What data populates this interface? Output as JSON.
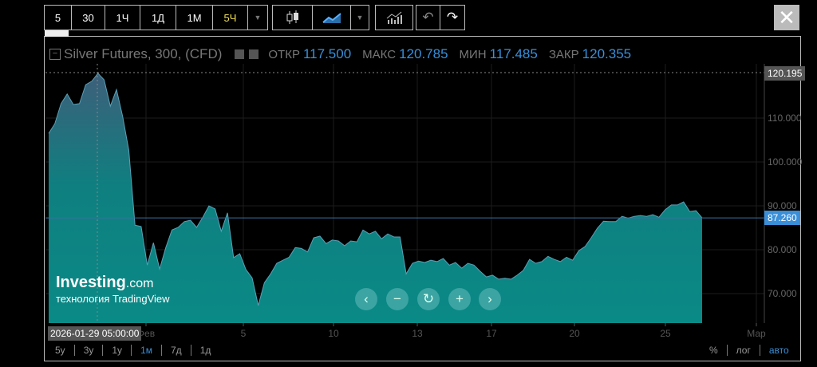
{
  "toolbar": {
    "intervals": [
      "5",
      "30",
      "1Ч",
      "1Д",
      "1М",
      "5Ч"
    ],
    "active_interval": "5Ч",
    "icons": [
      "chevron-down-icon",
      "candlestick-icon",
      "line-chart-icon",
      "chevron-down-icon",
      "indicators-icon",
      "undo-icon",
      "redo-icon"
    ],
    "close": "✕"
  },
  "legend": {
    "title": "Silver Futures, 300, (CFD)",
    "open_label": "ОТКР",
    "open": "117.500",
    "high_label": "МАКС",
    "high": "120.785",
    "low_label": "МИН",
    "low": "117.485",
    "close_label": "ЗАКР",
    "close": "120.355"
  },
  "crosshair": {
    "date": "2026-01-29 05:00:00",
    "price": "120.195"
  },
  "last_price": "87.260",
  "watermark": {
    "brand": "Investing",
    "brand_suffix": ".com",
    "sub": "технология TradingView"
  },
  "zoom_buttons": [
    "‹",
    "−",
    "↻",
    "+",
    "›"
  ],
  "ranges": [
    "5y",
    "3y",
    "1y",
    "1м",
    "7д",
    "1д"
  ],
  "active_range": "1м",
  "scale_options": [
    "%",
    "лог",
    "авто"
  ],
  "active_scale": "авто",
  "colors": {
    "fill_top": "#3d5f7a",
    "fill_bottom": "#0a8a86",
    "line": "#5aa0b5",
    "accent": "#3a8fd9"
  },
  "chart_data": {
    "type": "area",
    "title": "Silver Futures, 300, (CFD)",
    "ylim": [
      63,
      122
    ],
    "y_ticks": [
      "120.195",
      "110.000",
      "100.000",
      "90.000",
      "80.000",
      "70.000"
    ],
    "x_ticks": [
      "Фев",
      "5",
      "10",
      "13",
      "17",
      "20",
      "25",
      "Мар"
    ],
    "values": [
      106.5,
      108.7,
      113.3,
      115.5,
      113.1,
      113.3,
      117.6,
      118.4,
      120.2,
      118.7,
      112.7,
      116.5,
      110.4,
      102.7,
      85.6,
      85.3,
      76.5,
      81.6,
      75.6,
      80.5,
      84.5,
      85.1,
      86.4,
      86.7,
      85.1,
      87.4,
      90.0,
      89.3,
      84.2,
      88.4,
      78.2,
      79.1,
      75.5,
      73.6,
      67.3,
      72.5,
      74.5,
      76.9,
      77.6,
      78.3,
      80.5,
      80.3,
      79.5,
      82.7,
      83.1,
      81.4,
      82.2,
      82.0,
      80.9,
      82.0,
      81.8,
      84.5,
      83.6,
      84.2,
      82.5,
      83.6,
      82.9,
      82.9,
      74.5,
      76.9,
      77.4,
      77.1,
      77.6,
      77.3,
      78.0,
      76.5,
      77.1,
      75.8,
      76.9,
      76.5,
      75.1,
      73.8,
      74.2,
      73.3,
      73.5,
      73.3,
      74.2,
      75.3,
      77.8,
      76.9,
      77.3,
      78.5,
      77.8,
      77.3,
      78.3,
      77.6,
      79.8,
      80.7,
      82.7,
      84.9,
      86.5,
      86.4,
      86.4,
      87.6,
      87.2,
      87.6,
      87.8,
      87.6,
      88.0,
      87.4,
      89.1,
      90.2,
      90.2,
      90.9,
      88.7,
      88.9,
      87.26
    ]
  }
}
